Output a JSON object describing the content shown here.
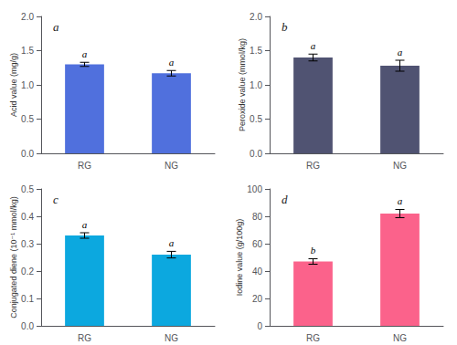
{
  "chart_data": [
    {
      "type": "bar",
      "title": "a",
      "ylabel": "Acid value (mg/g)",
      "categories": [
        "RG",
        "NG"
      ],
      "values": [
        1.3,
        1.17
      ],
      "errors": [
        0.03,
        0.04
      ],
      "annotations": [
        "a",
        "a"
      ],
      "ylim": [
        0,
        2.0
      ],
      "yticks": [
        {
          "value": 0.0,
          "label": "0.0"
        },
        0.5,
        {
          "value": 1.0,
          "label": "1.0"
        },
        1.5,
        {
          "value": 2.0,
          "label": "2.0"
        }
      ],
      "grid": false
    },
    {
      "type": "bar",
      "title": "b",
      "ylabel": "Peroxide value (mmol/kg)",
      "categories": [
        "RG",
        "NG"
      ],
      "values": [
        1.4,
        1.28
      ],
      "errors": [
        0.05,
        0.08
      ],
      "annotations": [
        "a",
        "a"
      ],
      "ylim": [
        0,
        2.0
      ],
      "yticks": [
        {
          "value": 0.0,
          "label": "0.0"
        },
        0.5,
        {
          "value": 1.0,
          "label": "1.0"
        },
        1.5,
        {
          "value": 2.0,
          "label": "2.0"
        }
      ],
      "grid": false
    },
    {
      "type": "bar",
      "title": "c",
      "ylabel": "Conjugated diene (10⁻¹ mmol/kg)",
      "categories": [
        "RG",
        "NG"
      ],
      "values": [
        0.33,
        0.26
      ],
      "errors": [
        0.01,
        0.012
      ],
      "annotations": [
        "a",
        "a"
      ],
      "ylim": [
        0,
        0.5
      ],
      "yticks": [
        {
          "value": 0.0,
          "label": "0.0"
        },
        0.1,
        0.2,
        0.3,
        0.4,
        0.5
      ],
      "grid": false
    },
    {
      "type": "bar",
      "title": "d",
      "ylabel": "Iodine value (g/100g)",
      "categories": [
        "RG",
        "NG"
      ],
      "values": [
        47,
        82
      ],
      "errors": [
        2,
        3
      ],
      "annotations": [
        "b",
        "a"
      ],
      "ylim": [
        0,
        100
      ],
      "yticks": [
        0,
        20,
        40,
        60,
        80,
        100
      ],
      "grid": false
    }
  ]
}
